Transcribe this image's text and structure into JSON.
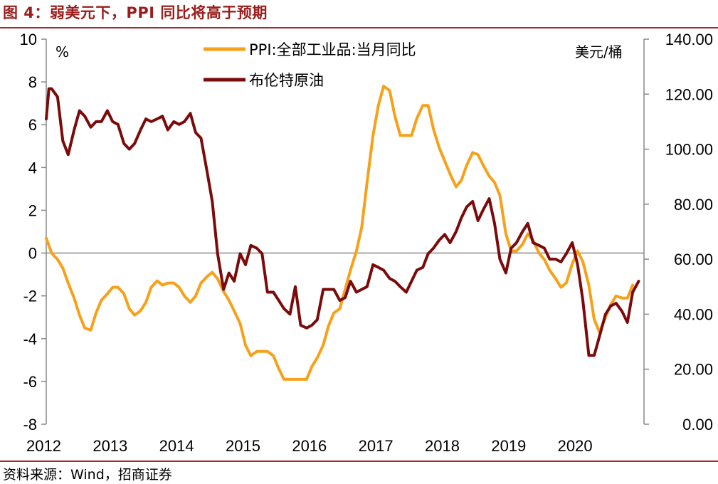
{
  "figure": {
    "title": "图 4：弱美元下，PPI 同比将高于预期",
    "source": "资料来源：Wind，招商证券"
  },
  "chart_data": {
    "type": "line",
    "left_axis": {
      "unit": "%",
      "ylim": [
        -8,
        10
      ],
      "ticks": [
        "10",
        "8",
        "6",
        "4",
        "2",
        "0",
        "-2",
        "-4",
        "-6",
        "-8"
      ]
    },
    "right_axis": {
      "unit": "美元/桶",
      "ylim": [
        0,
        140
      ],
      "ticks": [
        "140.00",
        "120.00",
        "100.00",
        "80.00",
        "60.00",
        "40.00",
        "20.00",
        "0.00"
      ]
    },
    "x_labels": [
      "2012",
      "2013",
      "2014",
      "2015",
      "2016",
      "2017",
      "2018",
      "2019",
      "2020"
    ],
    "x_start": 2012.0,
    "x_end": 2021.0,
    "series": [
      {
        "name": "PPI:全部工业品:当月同比",
        "axis": "left",
        "color": "#f7a11a",
        "x": [
          2012.0,
          2012.08,
          2012.17,
          2012.25,
          2012.33,
          2012.42,
          2012.5,
          2012.58,
          2012.67,
          2012.75,
          2012.83,
          2012.92,
          2013.0,
          2013.08,
          2013.17,
          2013.25,
          2013.33,
          2013.42,
          2013.5,
          2013.58,
          2013.67,
          2013.75,
          2013.83,
          2013.92,
          2014.0,
          2014.08,
          2014.17,
          2014.25,
          2014.33,
          2014.42,
          2014.5,
          2014.58,
          2014.67,
          2014.75,
          2014.83,
          2014.92,
          2015.0,
          2015.08,
          2015.17,
          2015.25,
          2015.33,
          2015.42,
          2015.5,
          2015.58,
          2015.67,
          2015.75,
          2015.83,
          2015.92,
          2016.0,
          2016.08,
          2016.17,
          2016.25,
          2016.33,
          2016.42,
          2016.5,
          2016.58,
          2016.67,
          2016.75,
          2016.83,
          2016.92,
          2017.0,
          2017.08,
          2017.17,
          2017.25,
          2017.33,
          2017.42,
          2017.5,
          2017.58,
          2017.67,
          2017.75,
          2017.83,
          2017.92,
          2018.0,
          2018.08,
          2018.17,
          2018.25,
          2018.33,
          2018.42,
          2018.5,
          2018.58,
          2018.67,
          2018.75,
          2018.83,
          2018.92,
          2019.0,
          2019.08,
          2019.17,
          2019.25,
          2019.33,
          2019.42,
          2019.5,
          2019.58,
          2019.67,
          2019.75,
          2019.83,
          2019.92,
          2020.0,
          2020.08,
          2020.17,
          2020.25,
          2020.33,
          2020.42,
          2020.5,
          2020.58,
          2020.67,
          2020.75,
          2020.83
        ],
        "values": [
          0.7,
          0.0,
          -0.3,
          -0.7,
          -1.4,
          -2.1,
          -2.9,
          -3.5,
          -3.6,
          -2.8,
          -2.2,
          -1.9,
          -1.6,
          -1.6,
          -1.9,
          -2.6,
          -2.9,
          -2.7,
          -2.3,
          -1.6,
          -1.3,
          -1.5,
          -1.4,
          -1.4,
          -1.6,
          -2.0,
          -2.3,
          -2.0,
          -1.4,
          -1.1,
          -0.9,
          -1.2,
          -1.8,
          -2.2,
          -2.7,
          -3.3,
          -4.3,
          -4.8,
          -4.6,
          -4.6,
          -4.6,
          -4.8,
          -5.4,
          -5.9,
          -5.9,
          -5.9,
          -5.9,
          -5.9,
          -5.3,
          -4.9,
          -4.3,
          -3.4,
          -2.8,
          -2.6,
          -1.7,
          -0.8,
          0.1,
          1.2,
          3.3,
          5.5,
          6.9,
          7.8,
          7.6,
          6.4,
          5.5,
          5.5,
          5.5,
          6.3,
          6.9,
          6.9,
          5.8,
          4.9,
          4.3,
          3.7,
          3.1,
          3.4,
          4.1,
          4.7,
          4.6,
          4.1,
          3.6,
          3.3,
          2.7,
          0.9,
          0.1,
          0.1,
          0.4,
          0.9,
          0.6,
          0.0,
          -0.3,
          -0.8,
          -1.2,
          -1.6,
          -1.4,
          -0.5,
          0.1,
          -0.4,
          -1.5,
          -3.1,
          -3.7,
          -3.0,
          -2.4,
          -2.0,
          -2.1,
          -2.1,
          -1.5
        ]
      },
      {
        "name": "布伦特原油",
        "axis": "right",
        "color": "#7b0b0b",
        "x": [
          2012.0,
          2012.04,
          2012.08,
          2012.17,
          2012.25,
          2012.33,
          2012.42,
          2012.5,
          2012.58,
          2012.67,
          2012.75,
          2012.83,
          2012.92,
          2013.0,
          2013.08,
          2013.17,
          2013.25,
          2013.33,
          2013.42,
          2013.5,
          2013.58,
          2013.67,
          2013.75,
          2013.83,
          2013.92,
          2014.0,
          2014.08,
          2014.17,
          2014.25,
          2014.33,
          2014.42,
          2014.5,
          2014.58,
          2014.67,
          2014.75,
          2014.83,
          2014.92,
          2015.0,
          2015.08,
          2015.17,
          2015.25,
          2015.33,
          2015.42,
          2015.5,
          2015.58,
          2015.67,
          2015.75,
          2015.83,
          2015.92,
          2016.0,
          2016.08,
          2016.17,
          2016.25,
          2016.33,
          2016.42,
          2016.5,
          2016.58,
          2016.67,
          2016.75,
          2016.83,
          2016.92,
          2017.0,
          2017.08,
          2017.17,
          2017.25,
          2017.33,
          2017.42,
          2017.5,
          2017.58,
          2017.67,
          2017.75,
          2017.83,
          2017.92,
          2018.0,
          2018.08,
          2018.17,
          2018.25,
          2018.33,
          2018.42,
          2018.5,
          2018.58,
          2018.67,
          2018.75,
          2018.83,
          2018.92,
          2019.0,
          2019.08,
          2019.17,
          2019.25,
          2019.33,
          2019.42,
          2019.5,
          2019.58,
          2019.67,
          2019.75,
          2019.83,
          2019.92,
          2020.0,
          2020.08,
          2020.17,
          2020.25,
          2020.33,
          2020.42,
          2020.5,
          2020.58,
          2020.67,
          2020.75,
          2020.83,
          2020.92
        ],
        "values": [
          111,
          122,
          122,
          119,
          103,
          98,
          107,
          114,
          112,
          108,
          110,
          110,
          114,
          110,
          109,
          102,
          100,
          102,
          107,
          111,
          110,
          111,
          112,
          107,
          110,
          109,
          110,
          113,
          106,
          104,
          92,
          81,
          62,
          49,
          55,
          52,
          62,
          58,
          65,
          64,
          62,
          48,
          48,
          45,
          42,
          40,
          50,
          36,
          35,
          36,
          38,
          49,
          49,
          49,
          45,
          46,
          52,
          48,
          49,
          50,
          58,
          57,
          56,
          53,
          52,
          50,
          48,
          52,
          56,
          57,
          62,
          64,
          67,
          69,
          66,
          70,
          75,
          79,
          81,
          74,
          78,
          82,
          73,
          60,
          55,
          64,
          66,
          70,
          73,
          66,
          65,
          64,
          60,
          60,
          59,
          62,
          66,
          58,
          45,
          25,
          25,
          32,
          40,
          43,
          44,
          41,
          37,
          48,
          52
        ]
      }
    ]
  }
}
